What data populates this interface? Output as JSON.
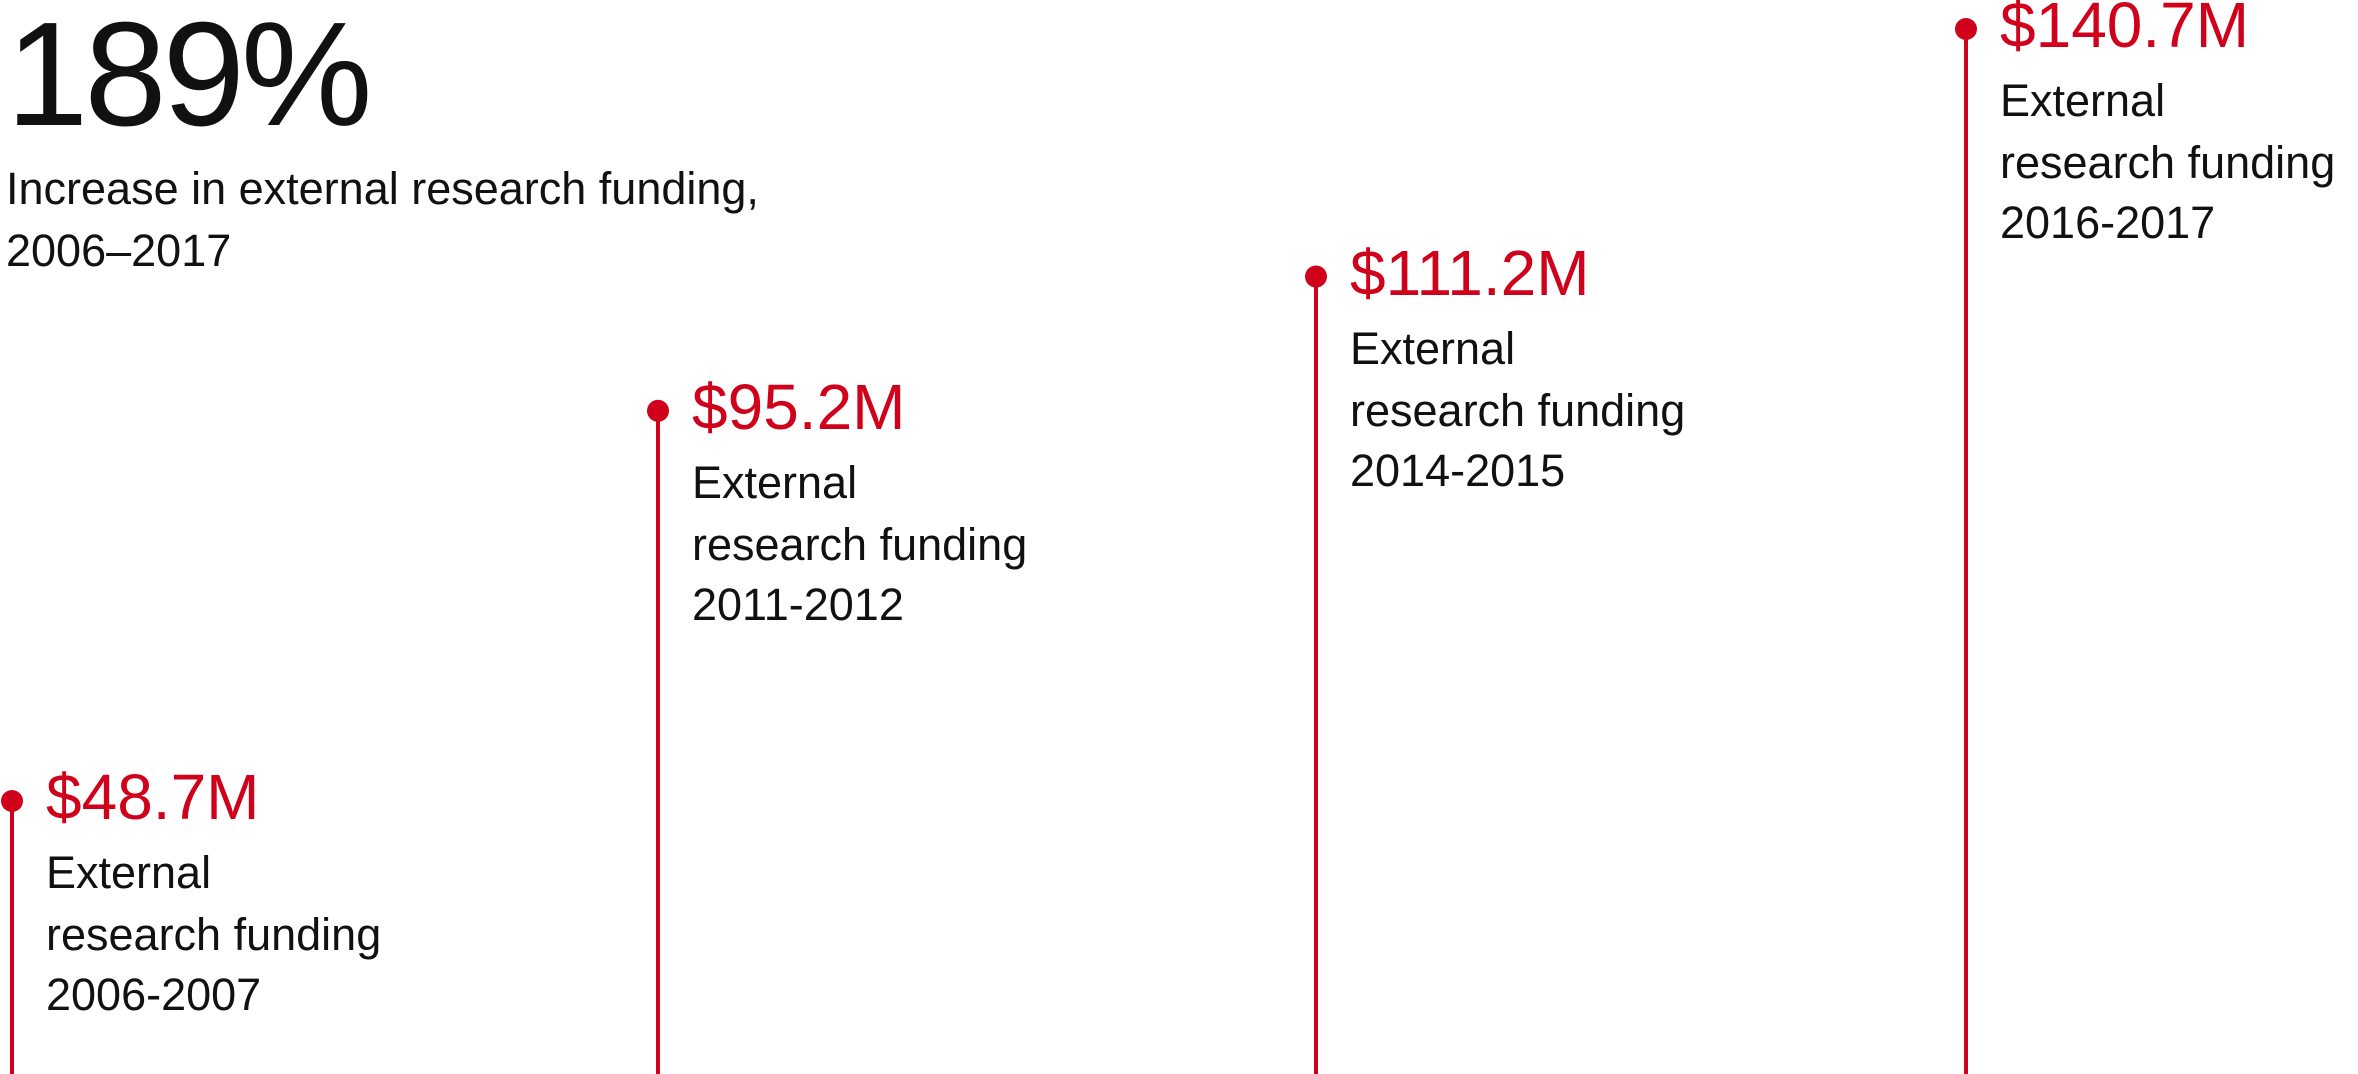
{
  "headline": {
    "figure": "189%",
    "caption_line1": "Increase in external research funding,",
    "caption_line2": "2006–2017"
  },
  "colors": {
    "accent": "#d0021b",
    "text": "#111111"
  },
  "chart_data": {
    "type": "bar",
    "categories": [
      "2006-2007",
      "2011-2012",
      "2014-2015",
      "2016-2017"
    ],
    "values": [
      48.7,
      95.2,
      111.2,
      140.7
    ],
    "value_labels": [
      "$48.7M",
      "$95.2M",
      "$111.2M",
      "$140.7M"
    ],
    "label_line1": "External",
    "label_line2": "research funding",
    "title": "",
    "xlabel": "",
    "ylabel": "",
    "ylim": [
      0,
      140.7
    ],
    "grid": false
  }
}
